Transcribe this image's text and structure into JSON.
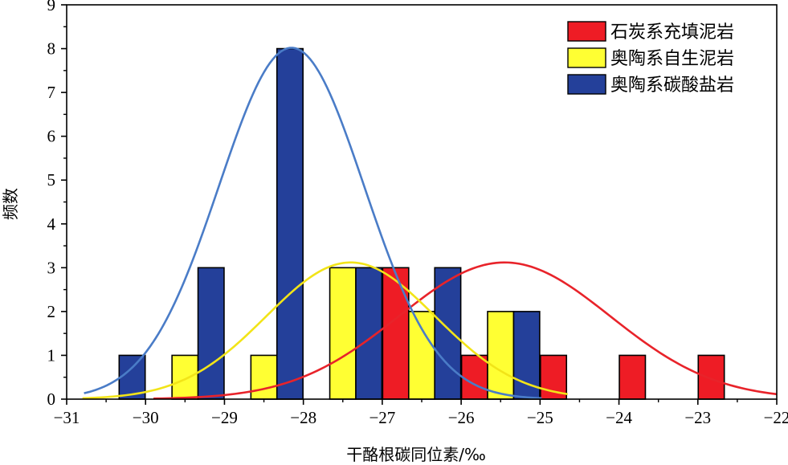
{
  "chart_data": {
    "type": "bar",
    "xlabel": "干酪根碳同位素/‰",
    "ylabel": "频数",
    "xlim": [
      -31,
      -22
    ],
    "ylim": [
      0,
      9
    ],
    "x_ticks": [
      -31,
      -30,
      -29,
      -28,
      -27,
      -26,
      -25,
      -24,
      -23,
      -22
    ],
    "x_tick_labels": [
      "−31",
      "−30",
      "−29",
      "−28",
      "−27",
      "−26",
      "−25",
      "−24",
      "−23",
      "−22"
    ],
    "y_ticks": [
      0,
      1,
      2,
      3,
      4,
      5,
      6,
      7,
      8,
      9
    ],
    "y_tick_labels": [
      "0",
      "1",
      "2",
      "3",
      "4",
      "5",
      "6",
      "7",
      "8",
      "9"
    ],
    "bin_width": 0.33,
    "legend_position": "top-right",
    "series": [
      {
        "name": "石炭系充填泥岩",
        "color": "#ee1c25",
        "bars": [
          {
            "x": -26.83,
            "value": 3
          },
          {
            "x": -25.83,
            "value": 1
          },
          {
            "x": -24.83,
            "value": 1
          },
          {
            "x": -23.83,
            "value": 1
          },
          {
            "x": -22.83,
            "value": 1
          }
        ],
        "curve": {
          "mean": -25.45,
          "sd": 1.34,
          "peak": 3.12,
          "x_range": [
            -29.9,
            -22.0
          ],
          "color": "#e8232a"
        }
      },
      {
        "name": "奥陶系自生泥岩",
        "color": "#ffff33",
        "bars": [
          {
            "x": -29.5,
            "value": 1
          },
          {
            "x": -28.5,
            "value": 1
          },
          {
            "x": -27.5,
            "value": 3
          },
          {
            "x": -26.5,
            "value": 2
          },
          {
            "x": -25.5,
            "value": 2
          }
        ],
        "curve": {
          "mean": -27.4,
          "sd": 1.07,
          "peak": 3.12,
          "x_range": [
            -30.8,
            -24.65
          ],
          "color": "#f2e418"
        }
      },
      {
        "name": "奥陶系碳酸盐岩",
        "color": "#24409a",
        "bars": [
          {
            "x": -30.17,
            "value": 1
          },
          {
            "x": -29.17,
            "value": 3
          },
          {
            "x": -28.17,
            "value": 8
          },
          {
            "x": -27.17,
            "value": 3
          },
          {
            "x": -26.17,
            "value": 3
          },
          {
            "x": -25.17,
            "value": 2
          }
        ],
        "curve": {
          "mean": -28.15,
          "sd": 0.92,
          "peak": 8.02,
          "x_range": [
            -30.78,
            -24.98
          ],
          "color": "#4a7cc7"
        }
      }
    ]
  }
}
